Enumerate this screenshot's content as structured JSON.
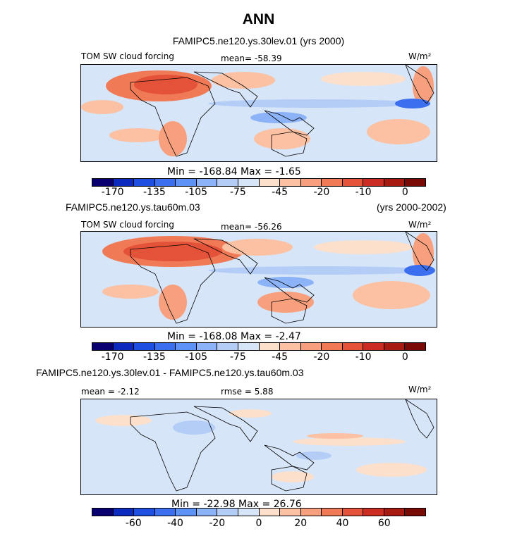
{
  "figure": {
    "title": "ANN",
    "subtitle": "FAMIPC5.ne120.ys.30lev.01 (yrs 2000)",
    "case2_name": "FAMIPC5.ne120.ys.tau60m.03",
    "case2_years": "(yrs 2000-2002)",
    "diff_title": "FAMIPC5.ne120.ys.30lev.01 - FAMIPC5.ne120.ys.tau60m.03"
  },
  "colors": {
    "fill_scale": [
      "#08006f",
      "#0c2bbe",
      "#1f4fe0",
      "#3b6ff0",
      "#5f92f5",
      "#8cb2f7",
      "#b3cdf7",
      "#d6e5f8",
      "#fde0cc",
      "#fcc1a2",
      "#f8a07e",
      "#f07a56",
      "#e4523a",
      "#cc2d22",
      "#a71a12",
      "#7a0a05"
    ],
    "land_outline": "#000000"
  },
  "chart_data": [
    {
      "type": "heatmap",
      "panel": "top",
      "field_label": "TOM SW cloud forcing",
      "mean_label": "mean= -58.39",
      "units": "W/m²",
      "min_max_label": "Min = -168.84  Max =  -1.65",
      "min": -168.84,
      "max": -1.65,
      "mean": -58.39,
      "colorbar_tick_labels": [
        "-170",
        "-135",
        "-105",
        "-75",
        "-45",
        "-20",
        "-10",
        "0"
      ],
      "colorbar_levels": [
        -170,
        -150,
        -135,
        -120,
        -105,
        -90,
        -75,
        -60,
        -45,
        -30,
        -20,
        -15,
        -10,
        -5,
        0
      ]
    },
    {
      "type": "heatmap",
      "panel": "middle",
      "field_label": "TOM SW cloud forcing",
      "mean_label": "mean= -56.26",
      "units": "W/m²",
      "min_max_label": "Min = -168.08  Max =  -2.47",
      "min": -168.08,
      "max": -2.47,
      "mean": -56.26,
      "colorbar_tick_labels": [
        "-170",
        "-135",
        "-105",
        "-75",
        "-45",
        "-20",
        "-10",
        "0"
      ],
      "colorbar_levels": [
        -170,
        -150,
        -135,
        -120,
        -105,
        -90,
        -75,
        -60,
        -45,
        -30,
        -20,
        -15,
        -10,
        -5,
        0
      ]
    },
    {
      "type": "heatmap",
      "panel": "bottom",
      "field_label": "mean =  -2.12",
      "mean_label": "rmse =  5.88",
      "units": "W/m²",
      "min_max_label": "Min = -22.98  Max =  26.76",
      "min": -22.98,
      "max": 26.76,
      "mean": -2.12,
      "rmse": 5.88,
      "colorbar_tick_labels": [
        "-60",
        "-40",
        "-20",
        "0",
        "20",
        "40",
        "60"
      ],
      "colorbar_levels": [
        -70,
        -60,
        -50,
        -40,
        -30,
        -20,
        -10,
        -5,
        5,
        10,
        20,
        30,
        40,
        50,
        60,
        70
      ]
    }
  ]
}
